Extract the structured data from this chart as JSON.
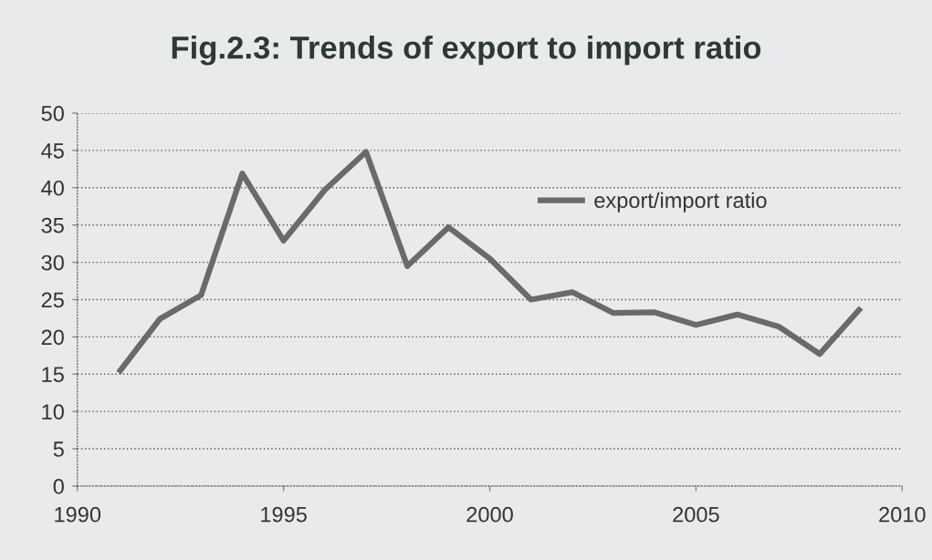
{
  "chart_data": {
    "type": "line",
    "title": "Fig.2.3: Trends of export to import ratio",
    "x": [
      1991,
      1992,
      1993,
      1994,
      1995,
      1996,
      1997,
      1998,
      1999,
      2000,
      2001,
      2002,
      2003,
      2004,
      2005,
      2006,
      2007,
      2008,
      2009
    ],
    "series": [
      {
        "name": "export/import ratio",
        "color": "#6a6a6a",
        "values": [
          15.2,
          22.4,
          25.6,
          41.9,
          32.9,
          39.7,
          44.8,
          29.5,
          34.7,
          30.5,
          25.0,
          26.0,
          23.2,
          23.3,
          21.6,
          23.0,
          21.4,
          17.7,
          23.9
        ]
      }
    ],
    "xlim": [
      1990,
      2010
    ],
    "xticks": [
      1990,
      1995,
      2000,
      2005,
      2010
    ],
    "ylim": [
      0,
      50
    ],
    "yticks": [
      0,
      5,
      10,
      15,
      20,
      25,
      30,
      35,
      40,
      45,
      50
    ],
    "grid": "y",
    "legend": "top right",
    "marker": "none",
    "line_style": "solid"
  }
}
